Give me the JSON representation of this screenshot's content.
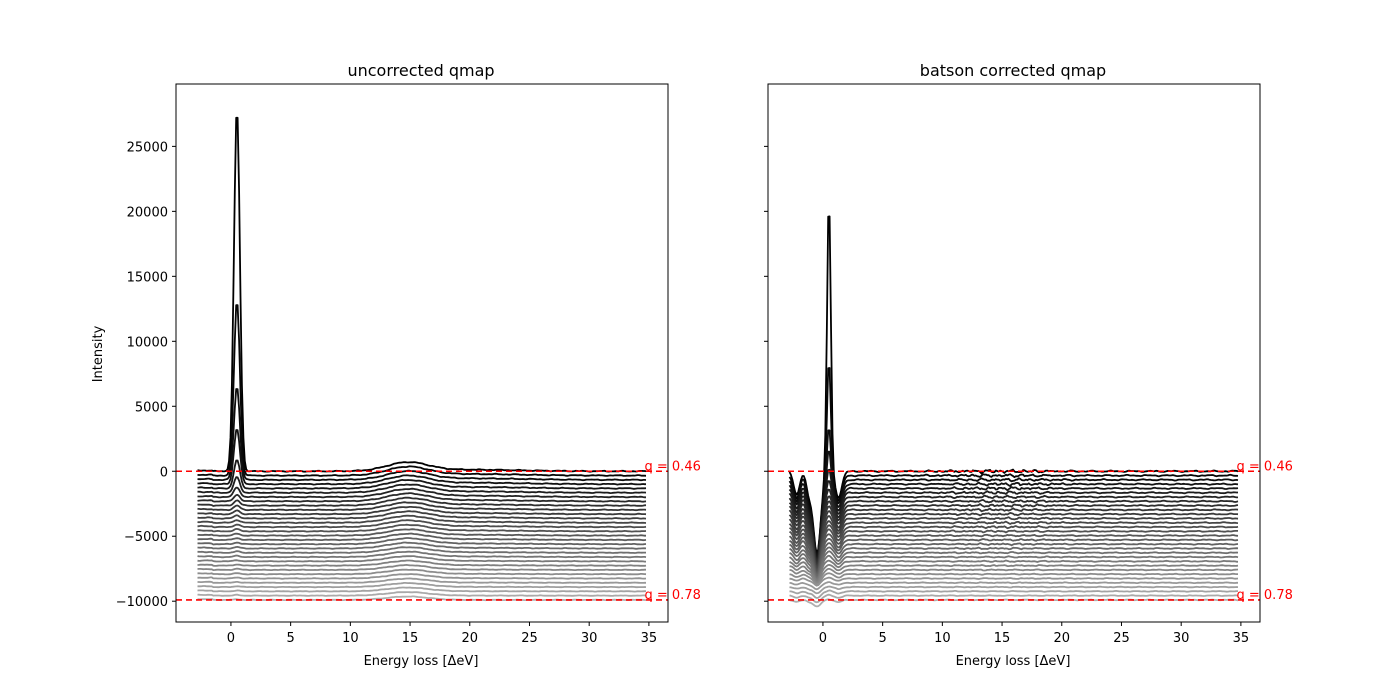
{
  "chart_data": [
    {
      "type": "line",
      "title": "uncorrected qmap",
      "xlabel": "Energy loss [ΔeV]",
      "ylabel": "Intensity",
      "xlim": [
        -4.6,
        36.6
      ],
      "ylim": [
        -11600,
        29800
      ],
      "xticks": [
        0,
        5,
        10,
        15,
        20,
        25,
        30,
        35
      ],
      "xtick_labels": [
        "0",
        "5",
        "10",
        "15",
        "20",
        "25",
        "30",
        "35"
      ],
      "yticks": [
        -10000,
        -5000,
        0,
        5000,
        10000,
        15000,
        20000,
        25000
      ],
      "ytick_labels": [
        "−10000",
        "−5000",
        "0",
        "5000",
        "10000",
        "15000",
        "20000",
        "25000"
      ],
      "x_range": [
        -2.8,
        34.8
      ],
      "n_series": 31,
      "series_offsets": [
        0,
        -330,
        -660,
        -990,
        -1320,
        -1650,
        -1980,
        -2310,
        -2640,
        -2970,
        -3300,
        -3630,
        -3960,
        -4290,
        -4620,
        -4950,
        -5280,
        -5610,
        -5940,
        -6270,
        -6600,
        -6930,
        -7260,
        -7590,
        -7920,
        -8250,
        -8580,
        -8910,
        -9240,
        -9570,
        -9900
      ],
      "zero_loss_peak": {
        "center": 0.5,
        "heights": [
          28000,
          13500,
          7200,
          4300,
          2200,
          1200,
          750,
          520,
          400,
          330,
          280,
          240,
          210,
          190,
          170,
          150,
          140,
          130,
          120,
          110,
          100,
          95,
          90,
          85,
          80,
          75,
          70,
          65,
          60,
          55,
          50
        ]
      },
      "plasmon_peak": {
        "center": 14.8,
        "height": 650
      },
      "reference_lines": [
        {
          "y": 0,
          "label": "q = 0.46",
          "color": "#ff0000",
          "style": "dashed"
        },
        {
          "y": -9900,
          "label": "q = 0.78",
          "color": "#ff0000",
          "style": "dashed"
        }
      ],
      "grid": false
    },
    {
      "type": "line",
      "title": "batson corrected qmap",
      "xlabel": "Energy loss [ΔeV]",
      "ylabel": "",
      "xlim": [
        -4.6,
        36.6
      ],
      "ylim": [
        -11600,
        29800
      ],
      "xticks": [
        0,
        5,
        10,
        15,
        20,
        25,
        30,
        35
      ],
      "xtick_labels": [
        "0",
        "5",
        "10",
        "15",
        "20",
        "25",
        "30",
        "35"
      ],
      "yticks": [
        -10000,
        -5000,
        0,
        5000,
        10000,
        15000,
        20000,
        25000
      ],
      "ytick_labels": [],
      "x_range": [
        -2.8,
        34.8
      ],
      "n_series": 31,
      "series_offsets": [
        0,
        -330,
        -660,
        -990,
        -1320,
        -1650,
        -1980,
        -2310,
        -2640,
        -2970,
        -3300,
        -3630,
        -3960,
        -4290,
        -4620,
        -4950,
        -5280,
        -5610,
        -5940,
        -6270,
        -6600,
        -6930,
        -7260,
        -7590,
        -7920,
        -8250,
        -8580,
        -8910,
        -9240,
        -9570,
        -9900
      ],
      "zero_loss_peak": {
        "center": 0.5,
        "heights": [
          21200,
          9000,
          4200,
          2800,
          1600,
          1000,
          700,
          500,
          400,
          330,
          280,
          240,
          210,
          190,
          170,
          150,
          140,
          130,
          120,
          110,
          100,
          95,
          90,
          85,
          80,
          75,
          70,
          65,
          60,
          55,
          50
        ]
      },
      "dip": {
        "center": -0.5,
        "depth": 6300
      },
      "reference_lines": [
        {
          "y": 0,
          "label": "q = 0.46",
          "color": "#ff0000",
          "style": "dashed"
        },
        {
          "y": -9900,
          "label": "q = 0.78",
          "color": "#ff0000",
          "style": "dashed"
        }
      ],
      "grid": false
    }
  ]
}
